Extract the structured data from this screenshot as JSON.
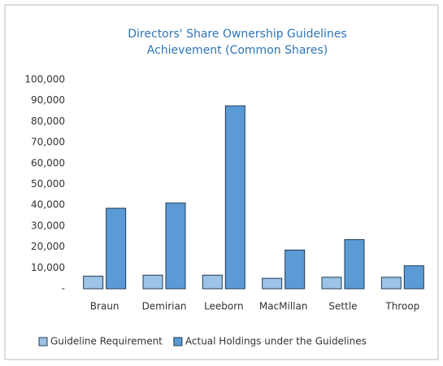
{
  "chart_data": {
    "type": "bar",
    "title": [
      "Directors' Share Ownership Guidelines",
      "Achievement (Common Shares)"
    ],
    "categories": [
      "Braun",
      "Demirian",
      "Leeborn",
      "MacMillan",
      "Settle",
      "Throop"
    ],
    "series": [
      {
        "name": "Guideline Requirement",
        "color": "#9dc3e6",
        "values": [
          6000,
          6500,
          6500,
          5000,
          5500,
          5500
        ]
      },
      {
        "name": "Actual Holdings under the Guidelines",
        "color": "#5b9bd5",
        "values": [
          38500,
          41000,
          87500,
          18500,
          23500,
          11000
        ]
      }
    ],
    "ylim": [
      0,
      100000
    ],
    "yticks": [
      {
        "value": 0,
        "label": "-"
      },
      {
        "value": 10000,
        "label": "10,000"
      },
      {
        "value": 20000,
        "label": "20,000"
      },
      {
        "value": 30000,
        "label": "30,000"
      },
      {
        "value": 40000,
        "label": "40,000"
      },
      {
        "value": 50000,
        "label": "50,000"
      },
      {
        "value": 60000,
        "label": "60,000"
      },
      {
        "value": 70000,
        "label": "70,000"
      },
      {
        "value": 80000,
        "label": "80,000"
      },
      {
        "value": 90000,
        "label": "90,000"
      },
      {
        "value": 100000,
        "label": "100,000"
      }
    ],
    "grid": false,
    "legend": "bottom"
  }
}
